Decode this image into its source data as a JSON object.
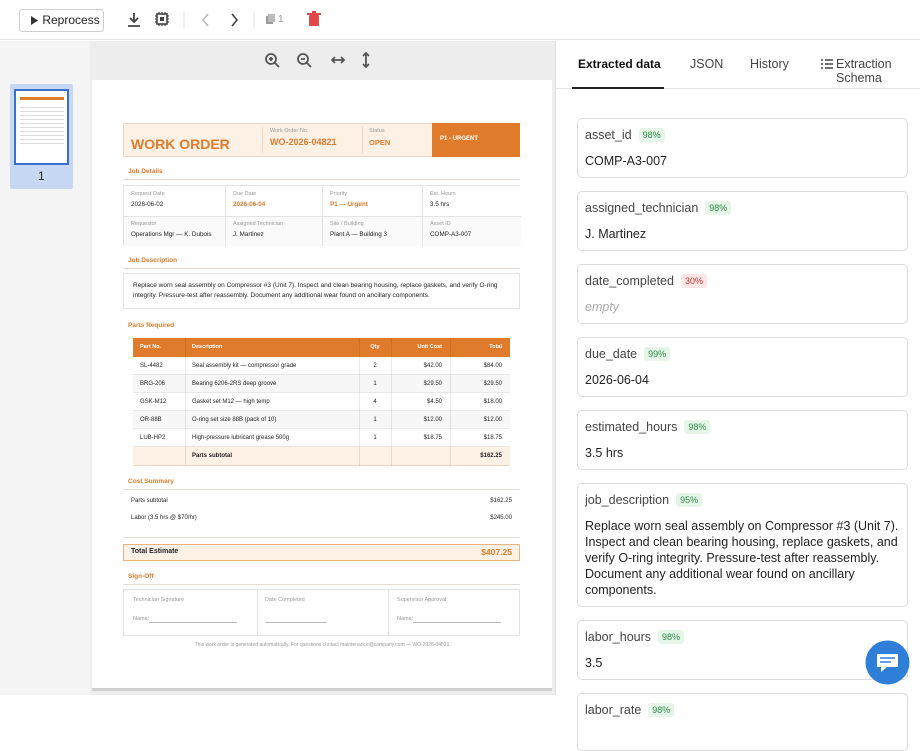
{
  "toolbar": {
    "reprocess": "Reprocess",
    "page_count": "1"
  },
  "viewer": {
    "thumbnail_label": "1"
  },
  "document": {
    "title": "WORK ORDER",
    "header": [
      {
        "label": "Work Order No.",
        "value": "WO-2026-04821"
      },
      {
        "label": "Status",
        "value": "OPEN"
      }
    ],
    "priority_badge": "P1 - URGENT",
    "job_details": {
      "heading": "Job Details",
      "fields": [
        {
          "label": "Request Date",
          "value": "2026-06-02"
        },
        {
          "label": "Due Date",
          "value": "2026-06-04",
          "color": "#e07b2c"
        },
        {
          "label": "Priority",
          "value": "P1 — Urgent",
          "color": "#e07b2c"
        },
        {
          "label": "Est. Hours",
          "value": "3.5 hrs"
        },
        {
          "label": "Requestor",
          "value": "Operations Mgr — K. Dubois"
        },
        {
          "label": "Assigned Technician",
          "value": "J. Martinez"
        },
        {
          "label": "Site / Building",
          "value": "Plant A — Building 3"
        },
        {
          "label": "Asset ID",
          "value": "COMP-A3-007"
        }
      ]
    },
    "job_description": {
      "heading": "Job Description",
      "text": "Replace worn seal assembly on Compressor #3 (Unit 7). Inspect and clean bearing housing, replace gaskets, and verify O-ring integrity. Pressure-test after reassembly. Document any additional wear found on ancillary components."
    },
    "parts": {
      "heading": "Parts Required",
      "columns": [
        "Part No.",
        "Description",
        "Qty",
        "Unit Cost",
        "Total"
      ],
      "rows": [
        [
          "SL-4482",
          "Seal assembly kit — compressor grade",
          "2",
          "$42.00",
          "$84.00"
        ],
        [
          "BRG-206",
          "Bearing 6206-2RS deep groove",
          "1",
          "$29.50",
          "$29.50"
        ],
        [
          "GSK-M12",
          "Gasket set M12 — high temp",
          "4",
          "$4.50",
          "$18.00"
        ],
        [
          "OR-88B",
          "O-ring set size 88B (pack of 10)",
          "1",
          "$12.00",
          "$12.00"
        ],
        [
          "LUB-HP2",
          "High-pressure lubricant grease 500g",
          "1",
          "$18.75",
          "$18.75"
        ]
      ],
      "subtotal_label": "Parts subtotal",
      "subtotal": "$162.25"
    },
    "cost_summary": {
      "heading": "Cost Summary",
      "rows": [
        [
          "Parts subtotal",
          "$162.25"
        ],
        [
          "Labor (3.5 hrs @ $70/hr)",
          "$245.00"
        ]
      ]
    },
    "total": {
      "label": "Total Estimate",
      "value": "$407.25"
    },
    "sign_off": {
      "heading": "Sign-Off",
      "fields": [
        "Technician Signature",
        "Date Completed",
        "Supervisor Approval"
      ],
      "name_label": "Name:"
    },
    "footer": "This work order is generated automatically. For questions contact maintenance@company.com — WO-2026-04821"
  },
  "panel": {
    "tabs": [
      "Extracted data",
      "JSON",
      "History",
      "Extraction Schema"
    ],
    "fields": [
      {
        "name": "asset_id",
        "confidence": "98%",
        "value": "COMP-A3-007"
      },
      {
        "name": "assigned_technician",
        "confidence": "98%",
        "value": "J. Martinez"
      },
      {
        "name": "date_completed",
        "confidence": "30%",
        "value": "empty"
      },
      {
        "name": "due_date",
        "confidence": "99%",
        "value": "2026-06-04"
      },
      {
        "name": "estimated_hours",
        "confidence": "98%",
        "value": "3.5 hrs"
      },
      {
        "name": "job_description",
        "confidence": "95%",
        "value": "Replace worn seal assembly on Compressor #3 (Unit 7). Inspect and clean bearing housing, replace gaskets, and verify O-ring integrity. Pressure-test after reassembly. Document any additional wear found on ancillary components."
      },
      {
        "name": "labor_hours",
        "confidence": "98%",
        "value": "3.5"
      },
      {
        "name": "labor_rate",
        "confidence": "98%",
        "value": ""
      }
    ]
  }
}
